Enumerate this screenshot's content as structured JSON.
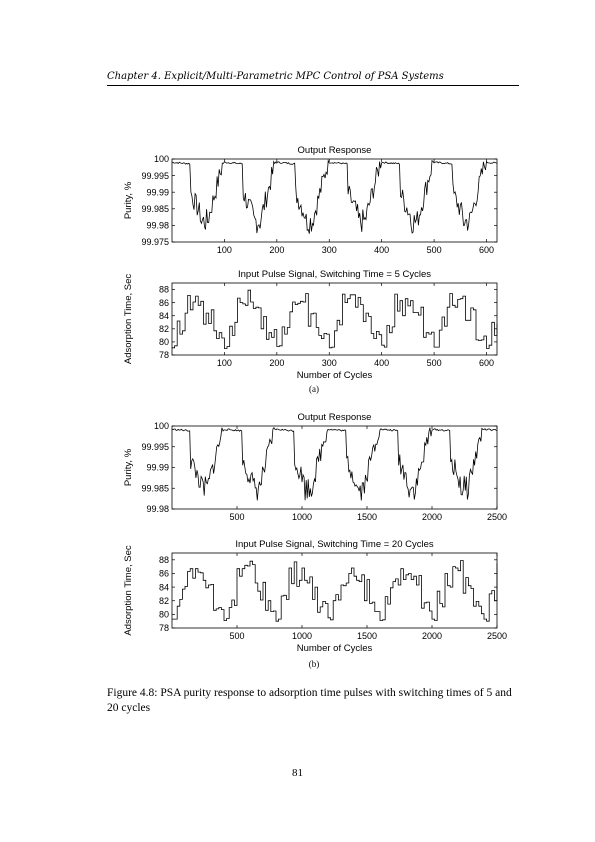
{
  "page": {
    "running_head": "Chapter 4. Explicit/Multi-Parametric MPC Control of PSA Systems",
    "caption": "Figure 4.8: PSA purity response to adsorption time pulses with switching times of 5 and 20 cycles",
    "page_number": "81"
  },
  "subfigures": [
    {
      "label": "(a)"
    },
    {
      "label": "(b)"
    }
  ],
  "chart_data": [
    {
      "type": "line",
      "title": "Output Response",
      "xlabel": "",
      "ylabel": "Purity, %",
      "xlim": [
        0,
        620
      ],
      "ylim": [
        99.975,
        100
      ],
      "x_ticks": [
        100,
        200,
        300,
        400,
        500,
        600
      ],
      "y_ticks": [
        99.975,
        99.98,
        99.985,
        99.99,
        99.995,
        100
      ],
      "y_tick_labels": [
        "99.975",
        "99.98",
        "99.985",
        "99.99",
        "99.995",
        "100"
      ],
      "series": [
        {
          "name": "",
          "period": 100,
          "phase": 0,
          "x": [],
          "y": []
        }
      ]
    },
    {
      "type": "line",
      "title": "Input Pulse Signal, Switching Time = 5 Cycles",
      "xlabel": "Number of Cycles",
      "ylabel": "Adsorption Time, Sec",
      "xlim": [
        0,
        620
      ],
      "ylim": [
        78,
        89
      ],
      "step": "post",
      "x_ticks": [
        100,
        200,
        300,
        400,
        500,
        600
      ],
      "y_ticks": [
        78,
        80,
        82,
        84,
        86,
        88
      ],
      "y_tick_labels": [
        "78",
        "80",
        "82",
        "84",
        "86",
        "88"
      ],
      "series": [
        {
          "name": "",
          "period": 100,
          "switch": 5,
          "x": [],
          "y": []
        }
      ]
    },
    {
      "type": "line",
      "title": "Output Response",
      "xlabel": "",
      "ylabel": "Purity, %",
      "xlim": [
        0,
        2500
      ],
      "ylim": [
        99.98,
        100
      ],
      "x_ticks": [
        500,
        1000,
        1500,
        2000,
        2500
      ],
      "y_ticks": [
        99.98,
        99.985,
        99.99,
        99.995,
        100
      ],
      "y_tick_labels": [
        "99.98",
        "99.985",
        "99.99",
        "99.995",
        "100"
      ],
      "series": [
        {
          "name": "",
          "period": 400,
          "phase": 0,
          "x": [],
          "y": []
        }
      ]
    },
    {
      "type": "line",
      "title": "Input Pulse Signal, Switching Time = 20 Cycles",
      "xlabel": "Number of Cycles",
      "ylabel": "Adsorption Time, Sec",
      "xlim": [
        0,
        2500
      ],
      "ylim": [
        78,
        89
      ],
      "step": "post",
      "x_ticks": [
        500,
        1000,
        1500,
        2000,
        2500
      ],
      "y_ticks": [
        78,
        80,
        82,
        84,
        86,
        88
      ],
      "y_tick_labels": [
        "78",
        "80",
        "82",
        "84",
        "86",
        "88"
      ],
      "series": [
        {
          "name": "",
          "period": 400,
          "switch": 20,
          "x": [],
          "y": []
        }
      ]
    }
  ]
}
